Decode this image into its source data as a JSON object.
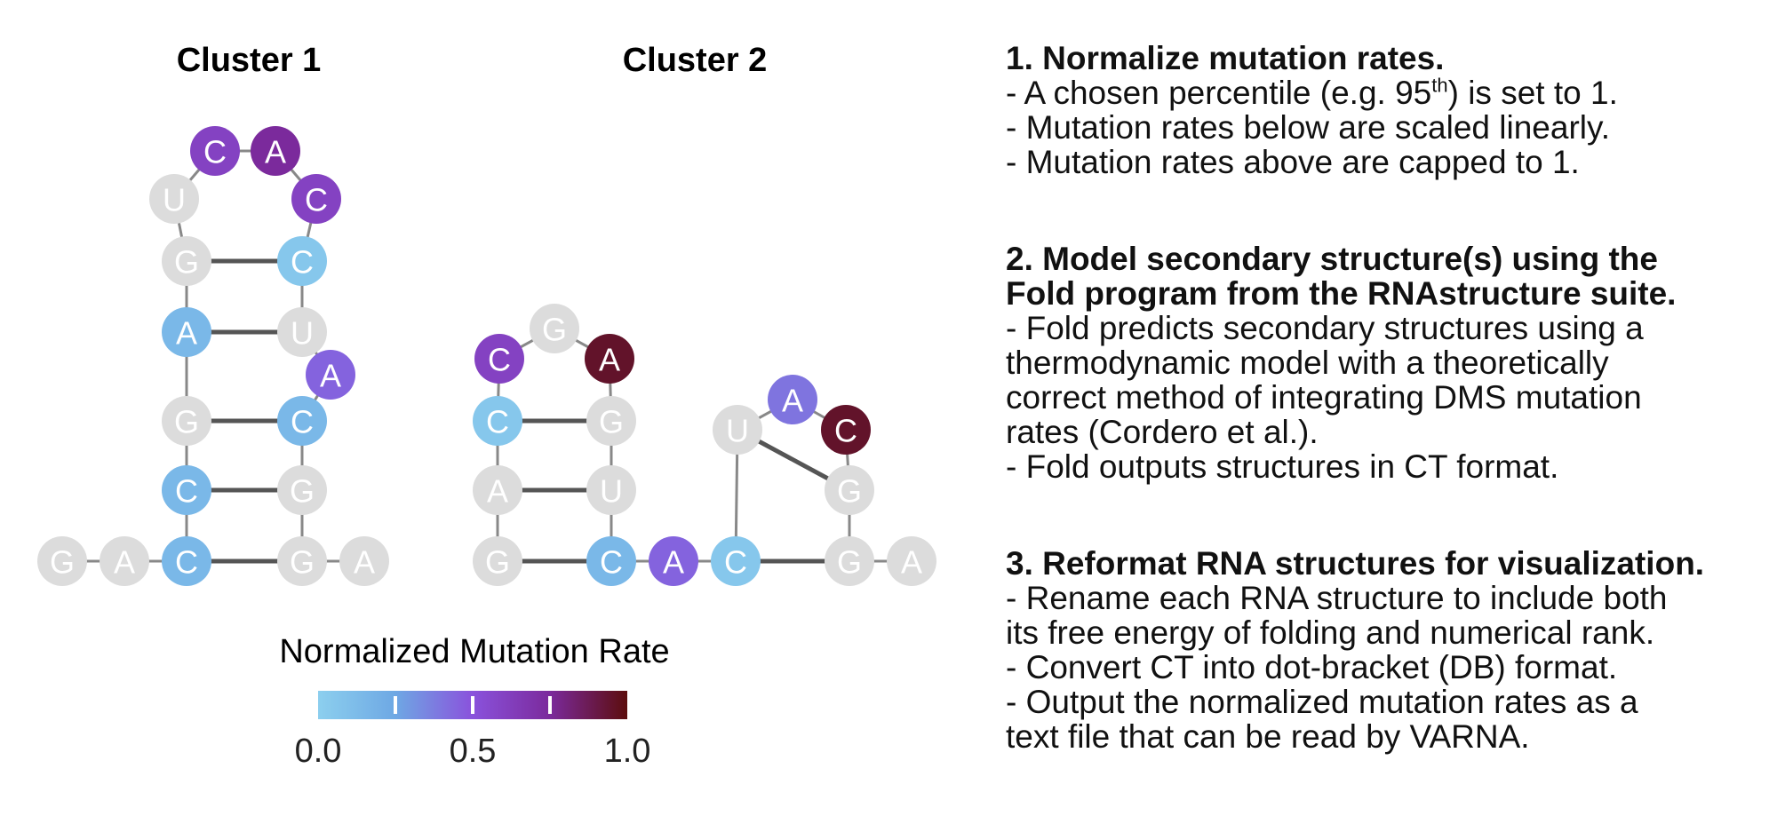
{
  "clusters": [
    {
      "title": "Cluster 1",
      "nucleotides": [
        {
          "id": "g1",
          "label": "G",
          "rate": null
        },
        {
          "id": "a2",
          "label": "A",
          "rate": null
        },
        {
          "id": "c3",
          "label": "C",
          "rate": 0.15
        },
        {
          "id": "c4",
          "label": "C",
          "rate": 0.15
        },
        {
          "id": "g5",
          "label": "G",
          "rate": null
        },
        {
          "id": "a6",
          "label": "A",
          "rate": 0.15
        },
        {
          "id": "g7",
          "label": "G",
          "rate": null
        },
        {
          "id": "u8",
          "label": "U",
          "rate": null
        },
        {
          "id": "c9",
          "label": "C",
          "rate": 0.6
        },
        {
          "id": "a10",
          "label": "A",
          "rate": 0.75
        },
        {
          "id": "c11",
          "label": "C",
          "rate": 0.6
        },
        {
          "id": "c12",
          "label": "C",
          "rate": 0.05
        },
        {
          "id": "u13",
          "label": "U",
          "rate": null
        },
        {
          "id": "a14",
          "label": "A",
          "rate": 0.45
        },
        {
          "id": "c15",
          "label": "C",
          "rate": 0.15
        },
        {
          "id": "g16",
          "label": "G",
          "rate": null
        },
        {
          "id": "g17",
          "label": "G",
          "rate": null
        },
        {
          "id": "a18",
          "label": "A",
          "rate": null
        }
      ],
      "pairs": [
        [
          "c3",
          "g17"
        ],
        [
          "c4",
          "g16"
        ],
        [
          "g5",
          "c15"
        ],
        [
          "a6",
          "u13"
        ],
        [
          "g7",
          "c12"
        ]
      ]
    },
    {
      "title": "Cluster 2",
      "nucleotides": [
        {
          "id": "g1",
          "label": "G",
          "rate": null
        },
        {
          "id": "a2",
          "label": "A",
          "rate": null
        },
        {
          "id": "c3",
          "label": "C",
          "rate": 0.05
        },
        {
          "id": "c4",
          "label": "C",
          "rate": 0.6
        },
        {
          "id": "g5",
          "label": "G",
          "rate": null
        },
        {
          "id": "a6",
          "label": "A",
          "rate": 0.95
        },
        {
          "id": "g7",
          "label": "G",
          "rate": null
        },
        {
          "id": "u8",
          "label": "U",
          "rate": null
        },
        {
          "id": "c9",
          "label": "C",
          "rate": 0.15
        },
        {
          "id": "a10",
          "label": "A",
          "rate": 0.45
        },
        {
          "id": "c11",
          "label": "C",
          "rate": 0.05
        },
        {
          "id": "u12",
          "label": "U",
          "rate": null
        },
        {
          "id": "a13",
          "label": "A",
          "rate": 0.4
        },
        {
          "id": "c14",
          "label": "C",
          "rate": 0.95
        },
        {
          "id": "g15",
          "label": "G",
          "rate": null
        },
        {
          "id": "g16",
          "label": "G",
          "rate": null
        },
        {
          "id": "a17",
          "label": "A",
          "rate": null
        }
      ],
      "pairs": [
        [
          "g1",
          "c9"
        ],
        [
          "a2",
          "u8"
        ],
        [
          "c3",
          "g7"
        ],
        [
          "c11",
          "g16"
        ],
        [
          "u12",
          "g15"
        ]
      ]
    }
  ],
  "colors": {
    "unreactive": "#dcdcdc",
    "scale": [
      "#8ccfee",
      "#6ea8e4",
      "#8a52dc",
      "#7b2a9c",
      "#5c0d0d"
    ],
    "pair_line": "#555555",
    "backbone": "#888888"
  },
  "legend": {
    "title": "Normalized Mutation Rate",
    "ticks": [
      {
        "value": 0.0,
        "label": "0.0"
      },
      {
        "value": 0.5,
        "label": "0.5"
      },
      {
        "value": 1.0,
        "label": "1.0"
      }
    ],
    "markers": [
      0.25,
      0.5,
      0.75
    ]
  },
  "steps": [
    {
      "title": "1. Normalize mutation rates.",
      "lines": [
        {
          "before": "- A chosen percentile (e.g. 95",
          "sup": "th",
          "after": ") is set to 1."
        },
        {
          "text": "- Mutation rates below are scaled linearly."
        },
        {
          "text": "- Mutation rates above are capped to 1."
        }
      ]
    },
    {
      "title_lines": [
        "2. Model secondary structure(s) using the",
        "Fold program from the RNAstructure suite."
      ],
      "lines": [
        {
          "text": "- Fold predicts secondary structures using a"
        },
        {
          "text": "thermodynamic model with a theoretically"
        },
        {
          "text": "correct method of integrating DMS mutation"
        },
        {
          "text": "rates (Cordero et al.)."
        },
        {
          "text": "- Fold outputs structures in CT format."
        }
      ]
    },
    {
      "title": "3. Reformat RNA structures for visualization.",
      "lines": [
        {
          "text": "- Rename each RNA structure to include both"
        },
        {
          "text": "its free energy of folding and numerical rank."
        },
        {
          "text": "- Convert CT into dot-bracket (DB) format."
        },
        {
          "text": "- Output the normalized mutation rates as a"
        },
        {
          "text": "text file that can be read by VARNA."
        }
      ]
    }
  ]
}
